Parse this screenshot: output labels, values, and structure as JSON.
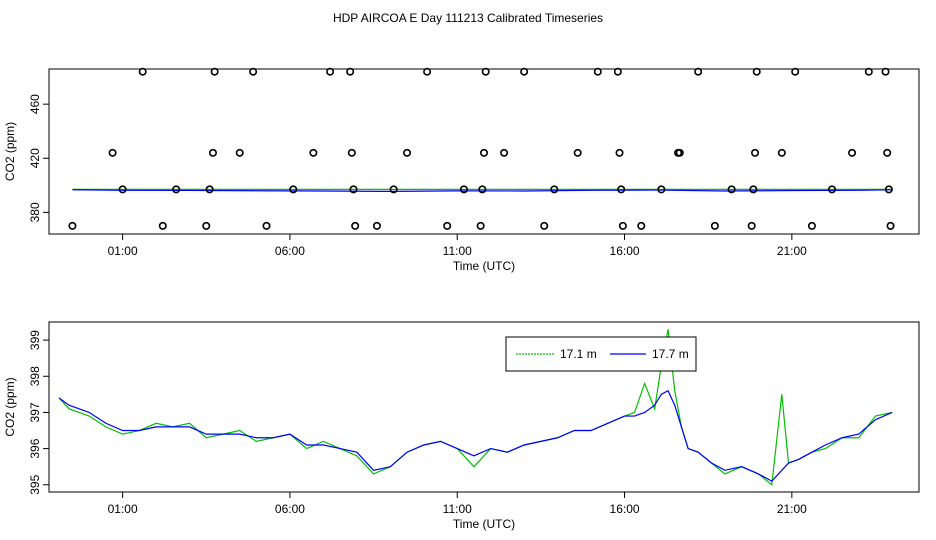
{
  "title": "HDP AIRCOA E  Day 111213  Calibrated Timeseries",
  "colors": {
    "series_1": "#00c000",
    "series_2": "#0000ff",
    "axis": "#000000"
  },
  "chart_data": [
    {
      "type": "scatter",
      "title": "",
      "xlabel": "Time (UTC)",
      "ylabel": "CO2 (ppm)",
      "x_unit": "hours UTC",
      "xlim": [
        -1.2,
        24.8
      ],
      "ylim": [
        364,
        486
      ],
      "xticks": [
        1,
        6,
        11,
        16,
        21
      ],
      "xtick_labels": [
        "01:00",
        "06:00",
        "11:00",
        "16:00",
        "21:00"
      ],
      "yticks": [
        380,
        420,
        460
      ],
      "ytick_labels": [
        "380",
        "420",
        "460"
      ],
      "grid": false,
      "legend": "none",
      "points": {
        "x": [
          -0.5,
          1.0,
          0.7,
          1.6,
          2.2,
          2.6,
          3.5,
          3.6,
          3.7,
          3.75,
          4.5,
          4.9,
          5.3,
          6.1,
          6.7,
          7.2,
          7.8,
          7.85,
          7.9,
          7.95,
          8.6,
          9.1,
          9.5,
          10.1,
          10.7,
          11.2,
          11.7,
          11.75,
          11.8,
          11.85,
          12.4,
          13.0,
          13.6,
          13.9,
          14.6,
          15.2,
          15.8,
          15.85,
          15.9,
          15.95,
          16.5,
          17.1,
          17.6,
          17.65,
          18.2,
          18.7,
          19.2,
          19.8,
          19.85,
          19.9,
          19.95,
          20.7,
          21.1,
          21.6,
          22.2,
          22.8,
          23.3,
          23.8,
          23.85,
          23.9,
          23.95
        ],
        "y": [
          370,
          397,
          424,
          484,
          370,
          397,
          370,
          397,
          424,
          484,
          424,
          484,
          370,
          397,
          424,
          484,
          484,
          424,
          397,
          370,
          370,
          397,
          424,
          484,
          370,
          397,
          370,
          397,
          424,
          484,
          424,
          484,
          370,
          397,
          424,
          484,
          484,
          424,
          397,
          370,
          370,
          397,
          424,
          424,
          484,
          370,
          397,
          370,
          397,
          424,
          484,
          424,
          484,
          370,
          397,
          424,
          484,
          484,
          424,
          397,
          370
        ]
      },
      "series": [
        {
          "x": [
            -0.5,
            24.0
          ],
          "values": [
            397,
            397
          ]
        },
        {
          "x": [
            -0.5,
            1,
            3,
            5,
            7,
            9,
            11,
            13,
            15,
            17,
            19,
            21,
            23,
            24.0
          ],
          "values": [
            396.7,
            396.3,
            396.2,
            396.0,
            395.8,
            395.5,
            395.9,
            395.8,
            396.3,
            396.5,
            395.8,
            396.1,
            396.3,
            396.7
          ]
        }
      ]
    },
    {
      "type": "line",
      "title": "",
      "xlabel": "Time (UTC)",
      "ylabel": "CO2 (ppm)",
      "x_unit": "hours UTC",
      "xlim": [
        -1.2,
        24.8
      ],
      "ylim": [
        394.8,
        399.5
      ],
      "xticks": [
        1,
        6,
        11,
        16,
        21
      ],
      "xtick_labels": [
        "01:00",
        "06:00",
        "11:00",
        "16:00",
        "21:00"
      ],
      "yticks": [
        395,
        396,
        397,
        398,
        399
      ],
      "ytick_labels": [
        "395",
        "396",
        "397",
        "398",
        "399"
      ],
      "grid": false,
      "legend": "top-center",
      "x": [
        -0.9,
        -0.6,
        -0.3,
        0.0,
        0.5,
        1.0,
        1.5,
        2.0,
        2.5,
        3.0,
        3.5,
        4.0,
        4.5,
        5.0,
        5.5,
        6.0,
        6.5,
        7.0,
        7.5,
        8.0,
        8.5,
        9.0,
        9.5,
        10.0,
        10.5,
        11.0,
        11.5,
        12.0,
        12.5,
        13.0,
        13.5,
        14.0,
        14.5,
        15.0,
        15.5,
        16.0,
        16.3,
        16.6,
        16.9,
        17.1,
        17.3,
        17.5,
        17.7,
        17.9,
        18.2,
        18.6,
        19.0,
        19.5,
        20.0,
        20.4,
        20.7,
        20.9,
        21.2,
        21.6,
        22.0,
        22.5,
        23.0,
        23.5,
        24.0
      ],
      "series": [
        {
          "name": "17.1 m",
          "values": [
            397.4,
            397.1,
            397.0,
            396.9,
            396.6,
            396.4,
            396.5,
            396.7,
            396.6,
            396.7,
            396.3,
            396.4,
            396.5,
            396.2,
            396.3,
            396.4,
            396.0,
            396.2,
            396.0,
            395.8,
            395.3,
            395.5,
            395.9,
            396.1,
            396.2,
            396.0,
            395.5,
            396.0,
            395.9,
            396.1,
            396.2,
            396.3,
            396.5,
            396.5,
            396.7,
            396.9,
            397.0,
            397.8,
            397.1,
            398.3,
            399.3,
            397.6,
            396.6,
            396.0,
            395.9,
            395.6,
            395.3,
            395.5,
            395.3,
            395.0,
            397.5,
            395.6,
            395.7,
            395.9,
            396.0,
            396.3,
            396.3,
            396.9,
            397.0
          ]
        },
        {
          "name": "17.7 m",
          "values": [
            397.4,
            397.2,
            397.1,
            397.0,
            396.7,
            396.5,
            396.5,
            396.6,
            396.6,
            396.6,
            396.4,
            396.4,
            396.4,
            396.3,
            396.3,
            396.4,
            396.1,
            396.1,
            396.0,
            395.9,
            395.4,
            395.5,
            395.9,
            396.1,
            396.2,
            396.0,
            395.8,
            396.0,
            395.9,
            396.1,
            396.2,
            396.3,
            396.5,
            396.5,
            396.7,
            396.9,
            396.9,
            397.0,
            397.2,
            397.5,
            397.6,
            397.2,
            396.6,
            396.0,
            395.9,
            395.6,
            395.4,
            395.5,
            395.3,
            395.1,
            395.4,
            395.6,
            395.7,
            395.9,
            396.1,
            396.3,
            396.4,
            396.8,
            397.0
          ]
        }
      ]
    }
  ]
}
